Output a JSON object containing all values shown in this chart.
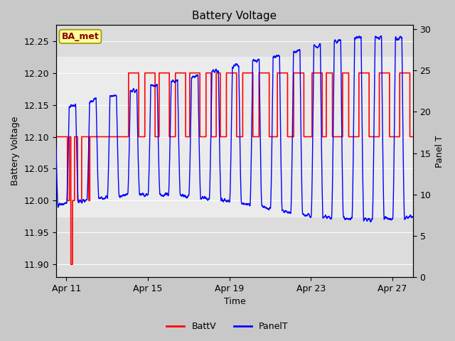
{
  "title": "Battery Voltage",
  "xlabel": "Time",
  "ylabel_left": "Battery Voltage",
  "ylabel_right": "Panel T",
  "legend_label": "BA_met",
  "batt_label": "BattV",
  "panel_label": "PanelT",
  "ylim_left": [
    11.88,
    12.275
  ],
  "ylim_right": [
    0,
    30.5
  ],
  "x_tick_days": [
    1,
    5,
    9,
    13,
    17
  ],
  "x_tick_labels": [
    "Apr 11",
    "Apr 15",
    "Apr 19",
    "Apr 23",
    "Apr 27"
  ],
  "xlim": [
    0.5,
    18.0
  ],
  "batt_color": "#FF0000",
  "panel_color": "#0000FF",
  "fig_bg": "#C8C8C8",
  "ax_bg": "#DCDCDC",
  "band_color": "#EBEBEB",
  "band_ymin": 11.975,
  "band_ymax": 12.225,
  "legend_box_fc": "#FFFF99",
  "legend_box_ec": "#999900",
  "yticks_left": [
    11.9,
    11.95,
    12.0,
    12.05,
    12.1,
    12.15,
    12.2,
    12.25
  ],
  "yticks_right": [
    0,
    5,
    10,
    15,
    20,
    25,
    30
  ]
}
